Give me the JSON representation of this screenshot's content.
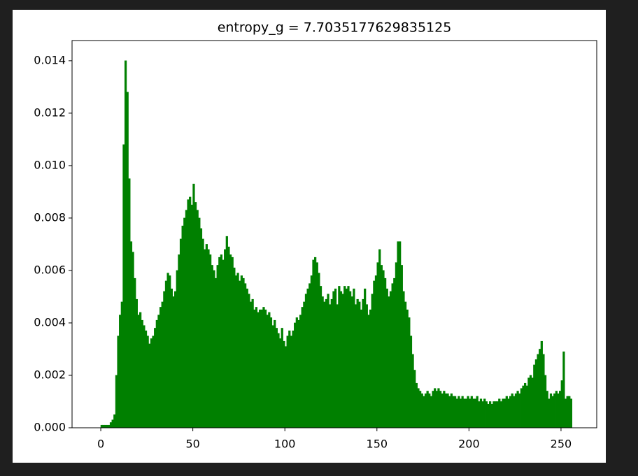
{
  "chart_data": {
    "type": "histogram",
    "title": "entropy_g = 7.7035177629835125",
    "color": "#008000",
    "bins": [
      0,
      1,
      2,
      3,
      4,
      5,
      6,
      7,
      8,
      9,
      10,
      11,
      12,
      13,
      14,
      15,
      16,
      17,
      18,
      19,
      20,
      21,
      22,
      23,
      24,
      25,
      26,
      27,
      28,
      29,
      30,
      31,
      32,
      33,
      34,
      35,
      36,
      37,
      38,
      39,
      40,
      41,
      42,
      43,
      44,
      45,
      46,
      47,
      48,
      49,
      50,
      51,
      52,
      53,
      54,
      55,
      56,
      57,
      58,
      59,
      60,
      61,
      62,
      63,
      64,
      65,
      66,
      67,
      68,
      69,
      70,
      71,
      72,
      73,
      74,
      75,
      76,
      77,
      78,
      79,
      80,
      81,
      82,
      83,
      84,
      85,
      86,
      87,
      88,
      89,
      90,
      91,
      92,
      93,
      94,
      95,
      96,
      97,
      98,
      99,
      100,
      101,
      102,
      103,
      104,
      105,
      106,
      107,
      108,
      109,
      110,
      111,
      112,
      113,
      114,
      115,
      116,
      117,
      118,
      119,
      120,
      121,
      122,
      123,
      124,
      125,
      126,
      127,
      128,
      129,
      130,
      131,
      132,
      133,
      134,
      135,
      136,
      137,
      138,
      139,
      140,
      141,
      142,
      143,
      144,
      145,
      146,
      147,
      148,
      149,
      150,
      151,
      152,
      153,
      154,
      155,
      156,
      157,
      158,
      159,
      160,
      161,
      162,
      163,
      164,
      165,
      166,
      167,
      168,
      169,
      170,
      171,
      172,
      173,
      174,
      175,
      176,
      177,
      178,
      179,
      180,
      181,
      182,
      183,
      184,
      185,
      186,
      187,
      188,
      189,
      190,
      191,
      192,
      193,
      194,
      195,
      196,
      197,
      198,
      199,
      200,
      201,
      202,
      203,
      204,
      205,
      206,
      207,
      208,
      209,
      210,
      211,
      212,
      213,
      214,
      215,
      216,
      217,
      218,
      219,
      220,
      221,
      222,
      223,
      224,
      225,
      226,
      227,
      228,
      229,
      230,
      231,
      232,
      233,
      234,
      235,
      236,
      237,
      238,
      239,
      240,
      241,
      242,
      243,
      244,
      245,
      246,
      247,
      248,
      249,
      250,
      251,
      252,
      253,
      254,
      255,
      256
    ],
    "values": [
      0.0001,
      0.0001,
      0.0001,
      0.0001,
      0.0001,
      0.0002,
      0.0003,
      0.0005,
      0.002,
      0.0035,
      0.0043,
      0.0048,
      0.0108,
      0.014,
      0.0128,
      0.0095,
      0.0071,
      0.0067,
      0.0057,
      0.0049,
      0.0043,
      0.0044,
      0.0041,
      0.0039,
      0.0037,
      0.0035,
      0.0032,
      0.0034,
      0.0035,
      0.0038,
      0.0041,
      0.0043,
      0.0046,
      0.0048,
      0.0052,
      0.0056,
      0.0059,
      0.0058,
      0.0053,
      0.005,
      0.0052,
      0.006,
      0.0066,
      0.0072,
      0.0077,
      0.008,
      0.0083,
      0.0087,
      0.0088,
      0.0085,
      0.0093,
      0.0086,
      0.0083,
      0.008,
      0.0076,
      0.0072,
      0.0068,
      0.007,
      0.0068,
      0.0066,
      0.0062,
      0.006,
      0.0057,
      0.0062,
      0.0065,
      0.0066,
      0.0064,
      0.0068,
      0.0073,
      0.0069,
      0.0066,
      0.0065,
      0.0061,
      0.0058,
      0.0059,
      0.0056,
      0.0058,
      0.0057,
      0.0055,
      0.0053,
      0.0051,
      0.0048,
      0.0049,
      0.0045,
      0.0046,
      0.0044,
      0.0045,
      0.0045,
      0.0046,
      0.0045,
      0.0043,
      0.0044,
      0.0042,
      0.0039,
      0.0041,
      0.0038,
      0.0036,
      0.0034,
      0.0038,
      0.0033,
      0.0031,
      0.0035,
      0.0037,
      0.0035,
      0.0037,
      0.004,
      0.0042,
      0.0041,
      0.0043,
      0.0046,
      0.0048,
      0.0051,
      0.0053,
      0.0055,
      0.0058,
      0.0064,
      0.0065,
      0.0063,
      0.0059,
      0.0054,
      0.005,
      0.0048,
      0.0049,
      0.0051,
      0.0047,
      0.0049,
      0.0052,
      0.0053,
      0.0047,
      0.0054,
      0.0052,
      0.0051,
      0.0054,
      0.0053,
      0.0054,
      0.0052,
      0.005,
      0.0053,
      0.0047,
      0.0049,
      0.0048,
      0.0045,
      0.0049,
      0.0053,
      0.0047,
      0.0043,
      0.0045,
      0.0051,
      0.0056,
      0.0058,
      0.0063,
      0.0068,
      0.0062,
      0.006,
      0.0057,
      0.0053,
      0.005,
      0.0052,
      0.0055,
      0.0057,
      0.0063,
      0.0071,
      0.0071,
      0.0062,
      0.0052,
      0.0048,
      0.0045,
      0.0042,
      0.0035,
      0.0028,
      0.0022,
      0.0017,
      0.0015,
      0.0014,
      0.0013,
      0.0012,
      0.0013,
      0.0014,
      0.0013,
      0.0012,
      0.0014,
      0.0015,
      0.0014,
      0.0015,
      0.0014,
      0.0013,
      0.0014,
      0.0013,
      0.0013,
      0.0012,
      0.0013,
      0.0012,
      0.0012,
      0.0011,
      0.0012,
      0.0011,
      0.0012,
      0.0011,
      0.0011,
      0.0012,
      0.0011,
      0.0012,
      0.0011,
      0.0011,
      0.0012,
      0.001,
      0.0011,
      0.001,
      0.0011,
      0.001,
      0.0009,
      0.001,
      0.0009,
      0.001,
      0.001,
      0.001,
      0.0011,
      0.001,
      0.0011,
      0.0011,
      0.0012,
      0.0011,
      0.0012,
      0.0013,
      0.0012,
      0.0013,
      0.0014,
      0.0013,
      0.0015,
      0.0016,
      0.0017,
      0.0016,
      0.0019,
      0.002,
      0.0019,
      0.0024,
      0.0026,
      0.0028,
      0.003,
      0.0033,
      0.0028,
      0.002,
      0.0014,
      0.0011,
      0.0013,
      0.0012,
      0.0013,
      0.0014,
      0.0013,
      0.0014,
      0.0018,
      0.0029,
      0.0011,
      0.0012,
      0.0012,
      0.0011
    ],
    "xlim": [
      -15.6,
      269.4
    ],
    "xticks": [
      0,
      50,
      100,
      150,
      200,
      250
    ],
    "ylim": [
      0,
      0.01477
    ],
    "yticks": [
      {
        "value": 0,
        "label": "0.000"
      },
      0.002,
      0.004,
      0.006,
      0.008,
      {
        "value": 0.01,
        "label": "0.010"
      },
      0.012,
      0.014
    ]
  }
}
